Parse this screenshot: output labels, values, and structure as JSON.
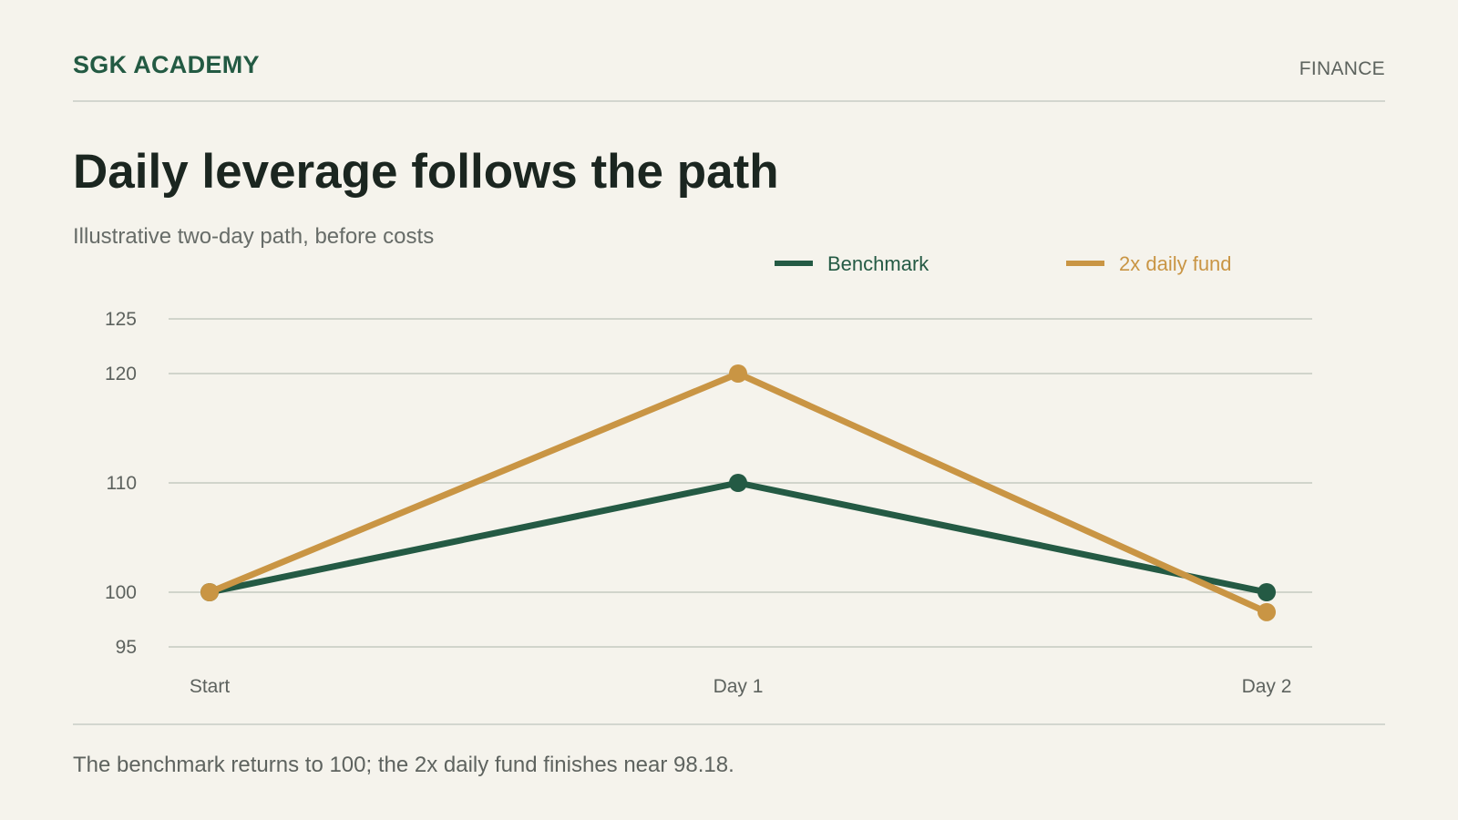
{
  "header": {
    "brand": "SGK ACADEMY",
    "section": "FINANCE"
  },
  "title": "Daily leverage follows the path",
  "subtitle": "Illustrative two-day path, before costs",
  "footnote": "The benchmark returns to 100; the 2x daily fund finishes near 98.18.",
  "colors": {
    "benchmark": "#245a44",
    "fund": "#c99544",
    "grid": "#d1d4cb",
    "background": "#f5f3ec"
  },
  "chart_data": {
    "type": "line",
    "categories": [
      "Start",
      "Day 1",
      "Day 2"
    ],
    "series": [
      {
        "name": "Benchmark",
        "values": [
          100,
          110,
          100
        ]
      },
      {
        "name": "2x daily fund",
        "values": [
          100,
          120,
          98.18
        ]
      }
    ],
    "yticks": [
      95,
      100,
      110,
      120,
      125
    ],
    "ylim": [
      95,
      125
    ],
    "grid": true,
    "legend_position": "top-right",
    "xlabel": "",
    "ylabel": ""
  }
}
